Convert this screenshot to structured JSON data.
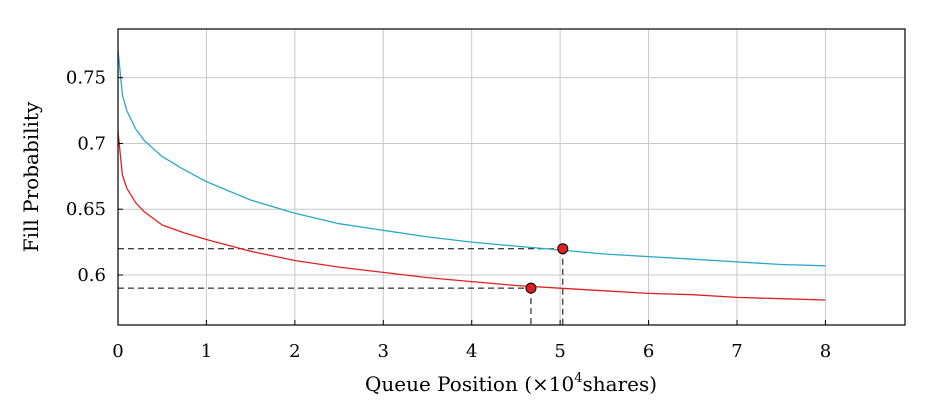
{
  "chart_data": {
    "type": "line",
    "xlabel_main": "Queue Position (×10",
    "xlabel_sup": "4",
    "xlabel_tail": "shares)",
    "ylabel": "Fill Probability",
    "xlim": [
      0,
      8.9
    ],
    "ylim": [
      0.562,
      0.787
    ],
    "x_ticks": [
      0,
      1,
      2,
      3,
      4,
      5,
      6,
      7,
      8
    ],
    "x_tick_labels": [
      "0",
      "1",
      "2",
      "3",
      "4",
      "5",
      "6",
      "7",
      "8"
    ],
    "y_ticks": [
      0.6,
      0.65,
      0.7,
      0.75
    ],
    "y_tick_labels": [
      "0.6",
      "0.65",
      "0.7",
      "0.75"
    ],
    "grid": true,
    "series": [
      {
        "color": "#2aa8c8",
        "x": [
          0,
          0.05,
          0.1,
          0.2,
          0.3,
          0.5,
          0.75,
          1,
          1.5,
          2,
          2.5,
          3,
          3.5,
          4,
          4.5,
          5,
          5.5,
          6,
          6.5,
          7,
          7.5,
          8
        ],
        "y": [
          0.771,
          0.737,
          0.725,
          0.711,
          0.702,
          0.69,
          0.68,
          0.671,
          0.657,
          0.647,
          0.639,
          0.634,
          0.629,
          0.625,
          0.622,
          0.619,
          0.616,
          0.614,
          0.612,
          0.61,
          0.608,
          0.607
        ]
      },
      {
        "color": "#e02020",
        "x": [
          0,
          0.05,
          0.1,
          0.2,
          0.3,
          0.5,
          0.75,
          1,
          1.5,
          2,
          2.5,
          3,
          3.5,
          4,
          4.5,
          5,
          5.5,
          6,
          6.5,
          7,
          7.5,
          8
        ],
        "y": [
          0.709,
          0.676,
          0.666,
          0.655,
          0.648,
          0.638,
          0.632,
          0.627,
          0.618,
          0.611,
          0.606,
          0.602,
          0.598,
          0.595,
          0.592,
          0.59,
          0.588,
          0.586,
          0.585,
          0.583,
          0.582,
          0.581
        ]
      }
    ],
    "markers": [
      {
        "x": 5.03,
        "y": 0.62,
        "color": "#e02020"
      },
      {
        "x": 4.67,
        "y": 0.59,
        "color": "#e02020"
      }
    ]
  }
}
